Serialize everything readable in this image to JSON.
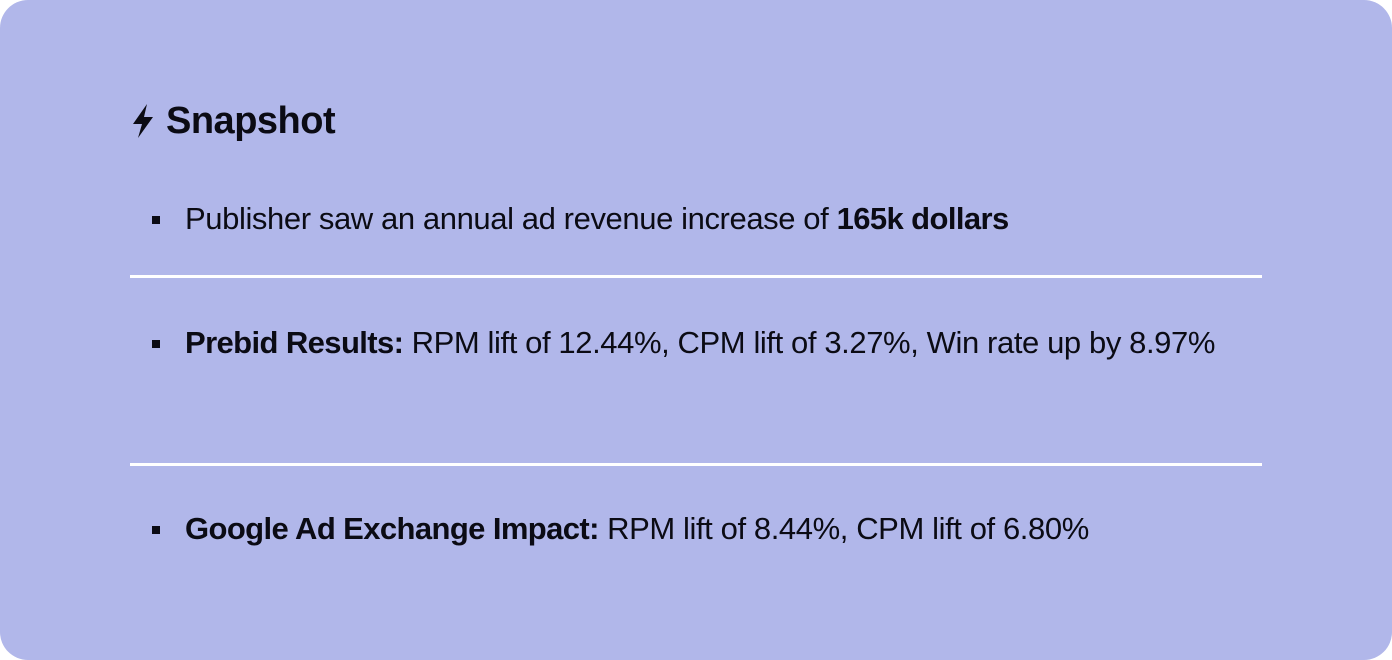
{
  "card": {
    "title": "Snapshot",
    "icon": "lightning-bolt-icon",
    "background_color": "#b1b7ea",
    "divider_color": "#ffffff"
  },
  "items": [
    {
      "text": "Publisher saw an annual ad revenue increase of ",
      "bold_suffix": "165k dollars"
    },
    {
      "bold_prefix": "Prebid Results:",
      "text": " RPM lift of 12.44%, CPM lift of 3.27%, Win rate up by 8.97%"
    },
    {
      "bold_prefix": "Google Ad Exchange Impact:",
      "text": " RPM lift of 8.44%, CPM lift of 6.80%"
    }
  ]
}
